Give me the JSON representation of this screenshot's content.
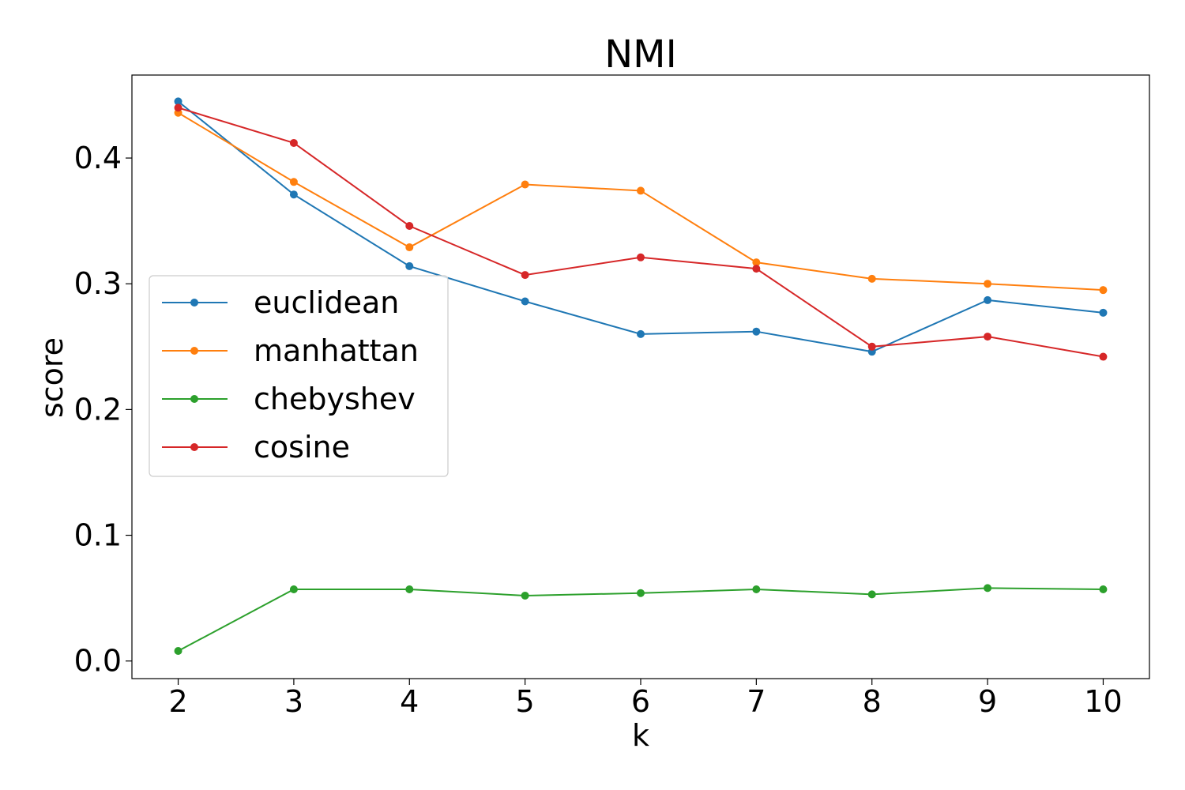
{
  "chart_data": {
    "type": "line",
    "title": "NMI",
    "xlabel": "k",
    "ylabel": "score",
    "x": [
      2,
      3,
      4,
      5,
      6,
      7,
      8,
      9,
      10
    ],
    "xticks": [
      "2",
      "3",
      "4",
      "5",
      "6",
      "7",
      "8",
      "9",
      "10"
    ],
    "yticks": [
      "0.0",
      "0.1",
      "0.2",
      "0.3",
      "0.4"
    ],
    "ytick_values": [
      0.0,
      0.1,
      0.2,
      0.3,
      0.4
    ],
    "xlim": [
      1.6,
      10.4
    ],
    "ylim": [
      -0.014,
      0.466
    ],
    "grid": false,
    "legend_position": "center-left",
    "series": [
      {
        "name": "euclidean",
        "color": "#1f77b4",
        "values": [
          0.445,
          0.371,
          0.314,
          0.286,
          0.26,
          0.262,
          0.246,
          0.287,
          0.277
        ]
      },
      {
        "name": "manhattan",
        "color": "#ff7f0e",
        "values": [
          0.436,
          0.381,
          0.329,
          0.379,
          0.374,
          0.317,
          0.304,
          0.3,
          0.295
        ]
      },
      {
        "name": "chebyshev",
        "color": "#2ca02c",
        "values": [
          0.008,
          0.057,
          0.057,
          0.052,
          0.054,
          0.057,
          0.053,
          0.058,
          0.057
        ]
      },
      {
        "name": "cosine",
        "color": "#d62728",
        "values": [
          0.44,
          0.412,
          0.346,
          0.307,
          0.321,
          0.312,
          0.25,
          0.258,
          0.242
        ]
      }
    ]
  }
}
